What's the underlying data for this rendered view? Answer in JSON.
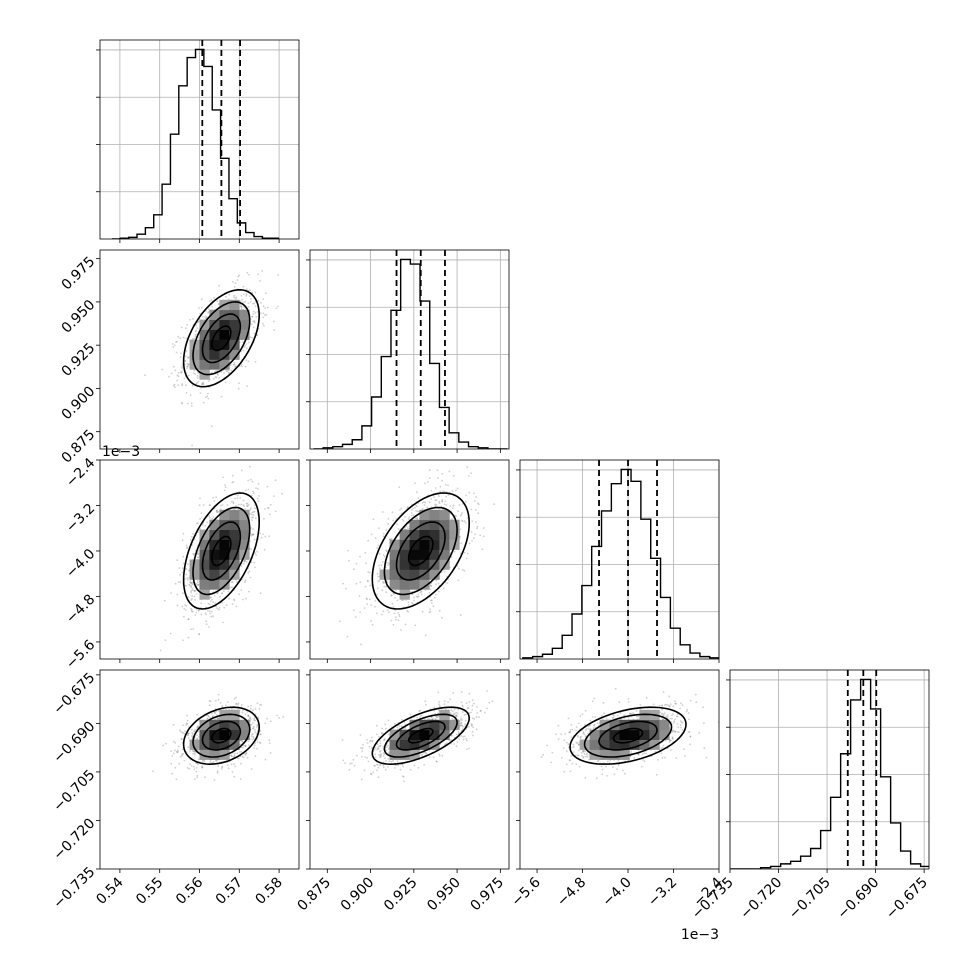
{
  "chart_data": {
    "type": "corner",
    "parameters": [
      {
        "range": [
          0.535,
          0.585
        ],
        "ticks": [
          "0.54",
          "0.55",
          "0.56",
          "0.57",
          "0.58"
        ],
        "tick_values": [
          0.54,
          0.55,
          0.56,
          0.57,
          0.58
        ],
        "offset_text": "",
        "quantiles": [
          0.5607,
          0.5655,
          0.5702
        ]
      },
      {
        "range": [
          0.865,
          0.98
        ],
        "ticks": [
          "0.875",
          "0.900",
          "0.925",
          "0.950",
          "0.975"
        ],
        "tick_values": [
          0.875,
          0.9,
          0.925,
          0.95,
          0.975
        ],
        "offset_text": "",
        "quantiles": [
          0.915,
          0.929,
          0.943
        ]
      },
      {
        "range": [
          -5.9,
          -2.4
        ],
        "ticks": [
          "−5.6",
          "−4.8",
          "−4.0",
          "−3.2",
          "−2.4"
        ],
        "tick_values": [
          -5.6,
          -4.8,
          -4.0,
          -3.2,
          -2.4
        ],
        "offset_text": "1e−3",
        "quantiles": [
          -4.51,
          -4.0,
          -3.49
        ]
      },
      {
        "range": [
          -0.735,
          -0.6735
        ],
        "ticks": [
          "−0.735",
          "−0.720",
          "−0.705",
          "−0.690",
          "−0.675"
        ],
        "tick_values": [
          -0.735,
          -0.72,
          -0.705,
          -0.69,
          -0.675
        ],
        "offset_text": "",
        "quantiles": [
          -0.6986,
          -0.6938,
          -0.6898
        ]
      }
    ],
    "histograms": [
      {
        "edges_start": 0.538,
        "bin_width": 0.0021,
        "counts": [
          0,
          1,
          2,
          6,
          14,
          30,
          68,
          130,
          190,
          225,
          235,
          214,
          160,
          100,
          50,
          20,
          8,
          3,
          1,
          1
        ]
      },
      {
        "edges_start": 0.867,
        "bin_width": 0.0056,
        "counts": [
          0,
          1,
          2,
          4,
          8,
          20,
          45,
          80,
          120,
          164,
          160,
          128,
          74,
          36,
          14,
          6,
          2,
          1,
          0,
          0
        ]
      },
      {
        "edges_start": -5.85,
        "bin_width": 0.173,
        "counts": [
          1,
          2,
          4,
          9,
          20,
          38,
          62,
          95,
          125,
          148,
          160,
          150,
          118,
          85,
          52,
          26,
          12,
          5,
          2,
          1
        ]
      },
      {
        "edges_start": -0.7348,
        "bin_width": 0.00309,
        "counts": [
          0,
          0,
          0,
          1,
          2,
          4,
          6,
          10,
          16,
          30,
          56,
          90,
          132,
          148,
          125,
          72,
          36,
          14,
          4,
          2
        ]
      }
    ],
    "pairs": [
      {
        "x": 0,
        "y": 1,
        "rho": 0.48
      },
      {
        "x": 0,
        "y": 2,
        "rho": 0.5
      },
      {
        "x": 1,
        "y": 2,
        "rho": 0.48
      },
      {
        "x": 0,
        "y": 3,
        "rho": 0.3
      },
      {
        "x": 1,
        "y": 3,
        "rho": 0.62
      },
      {
        "x": 2,
        "y": 3,
        "rho": 0.4
      }
    ],
    "grid": true,
    "contour_levels_sigma": [
      0.5,
      1.0,
      1.5,
      2.0
    ]
  }
}
